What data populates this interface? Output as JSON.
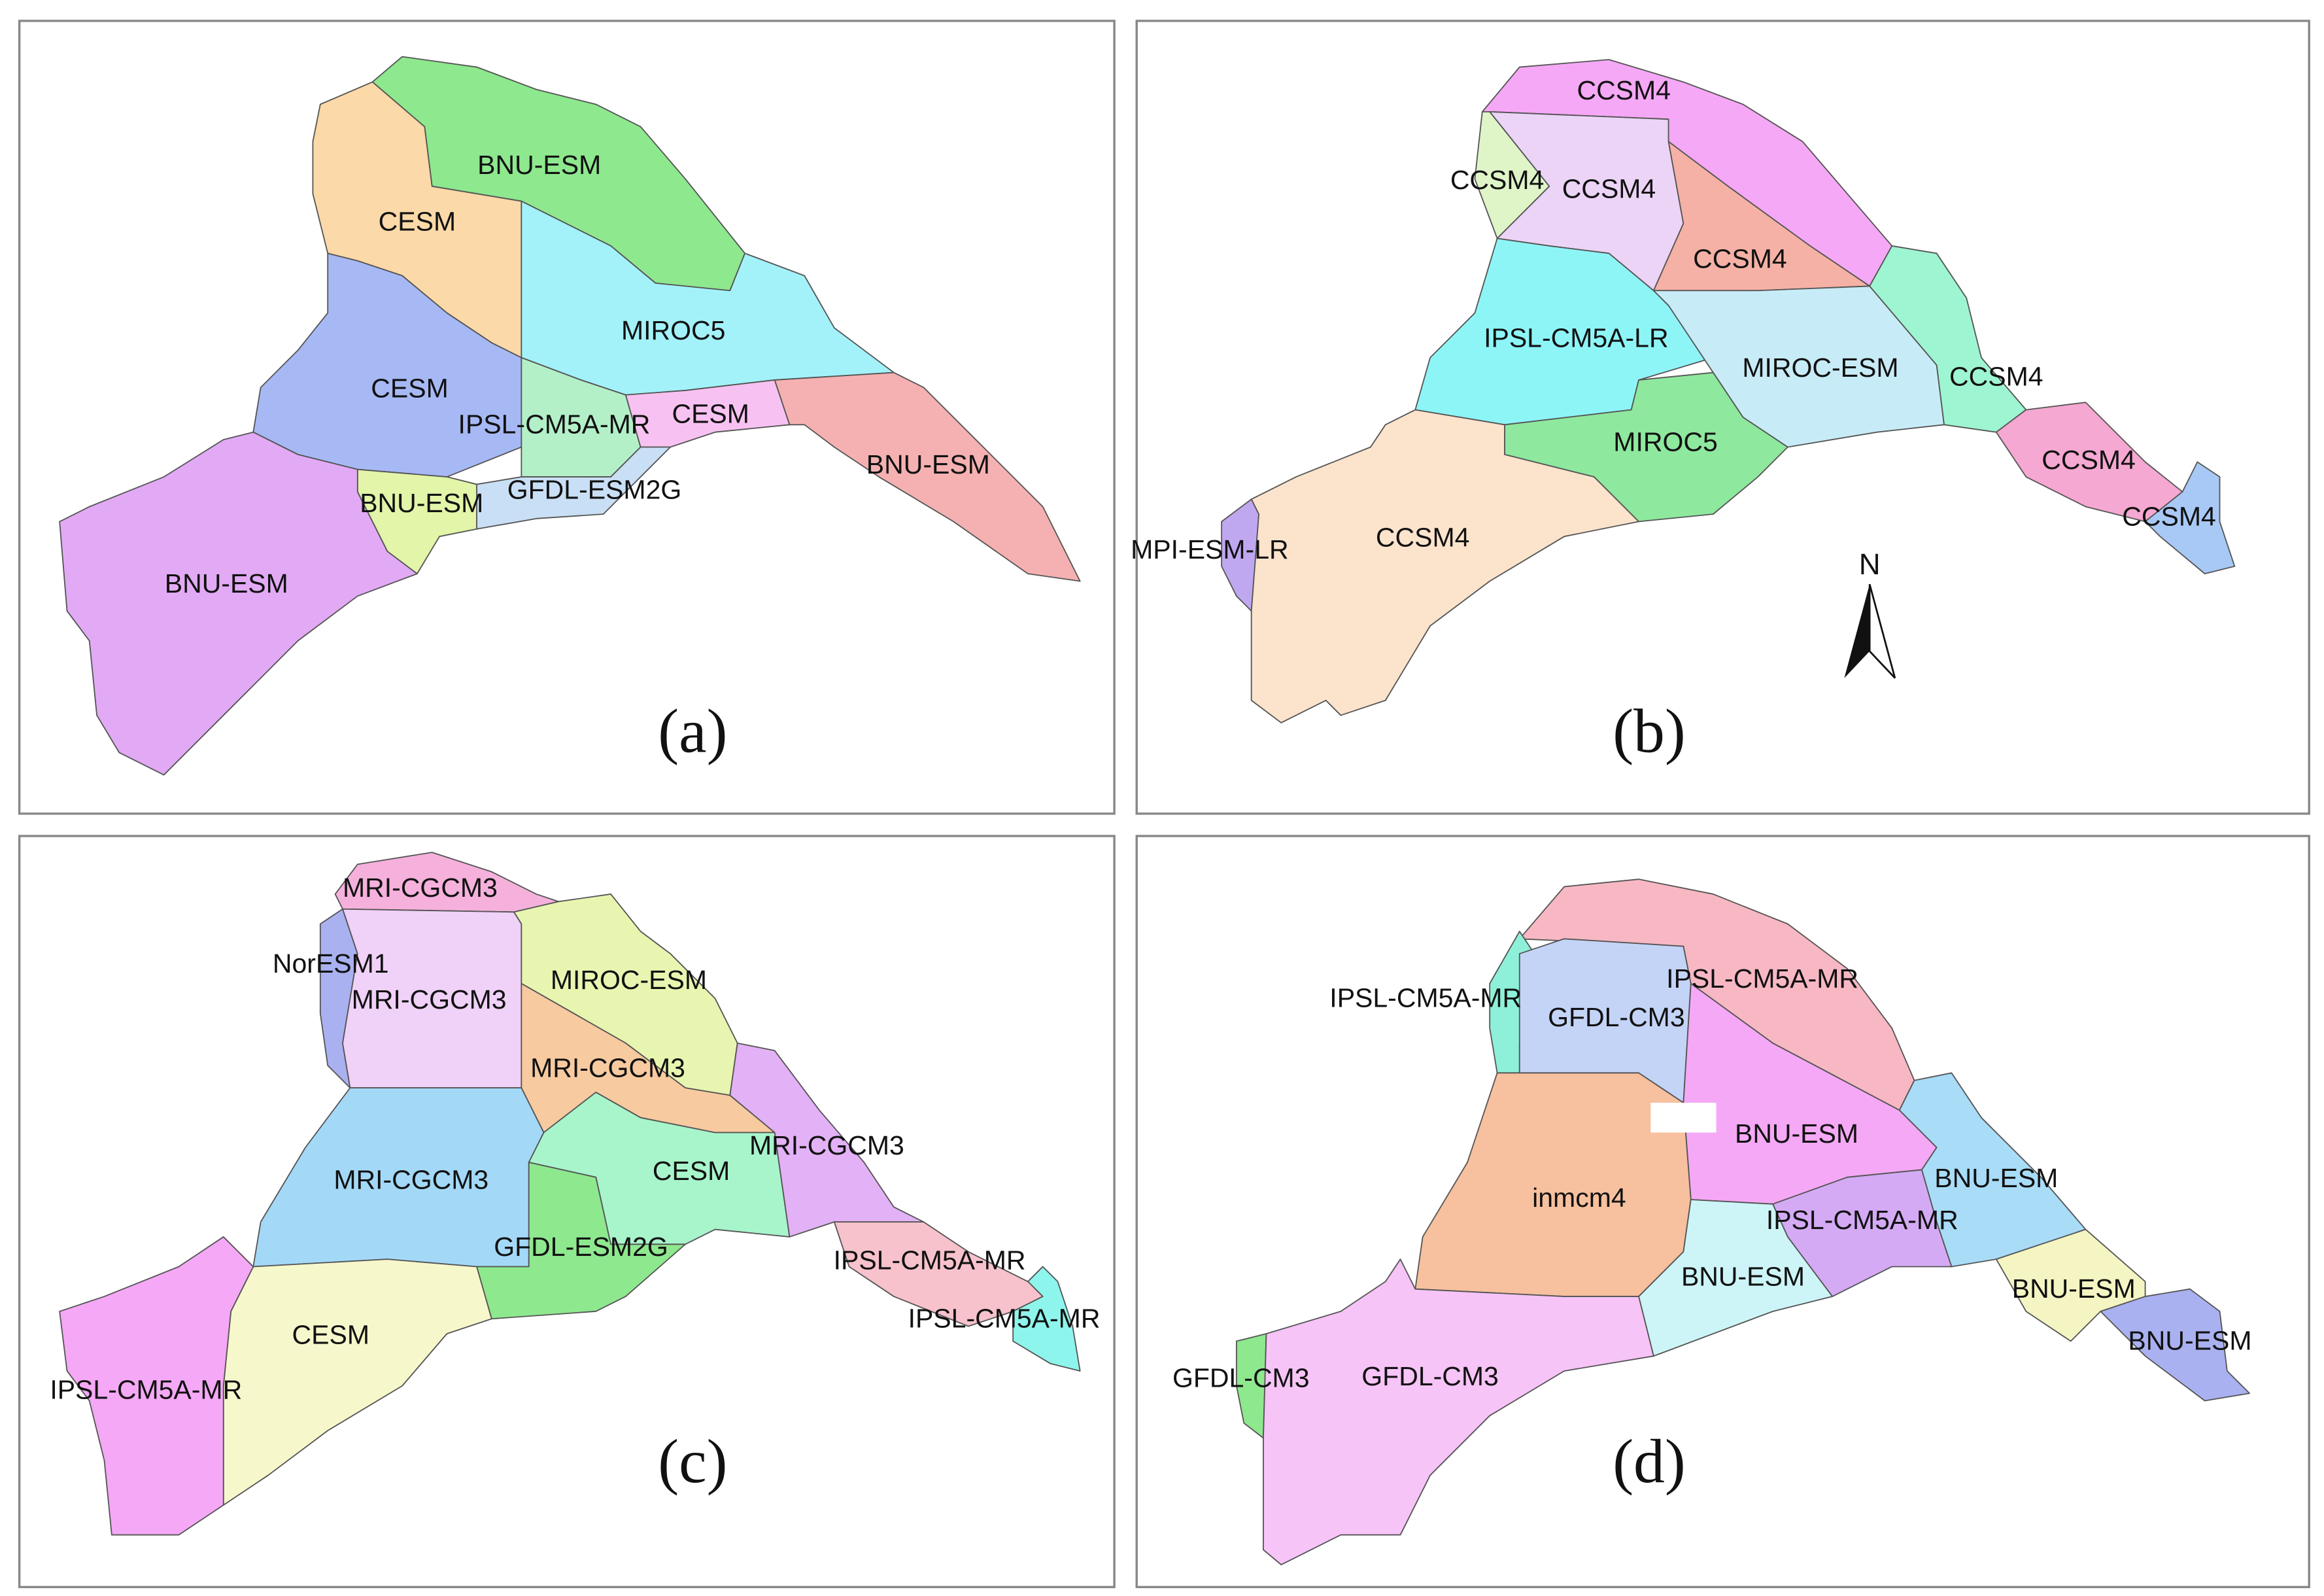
{
  "panels": [
    {
      "caption": "(a)",
      "regions": [
        {
          "label": "BNU-ESM",
          "color": "#8ee88e"
        },
        {
          "label": "CESM",
          "color": "#fcd9a8"
        },
        {
          "label": "MIROC5",
          "color": "#a3f2fa"
        },
        {
          "label": "CESM",
          "color": "#a7b9f5"
        },
        {
          "label": "IPSL-CM5A-MR",
          "color": "#b3f0c8"
        },
        {
          "label": "CESM",
          "color": "#f7c2f2"
        },
        {
          "label": "BNU-ESM",
          "color": "#f5b1b1"
        },
        {
          "label": "GFDL-ESM2G",
          "color": "#c9dff5"
        },
        {
          "label": "BNU-ESM",
          "color": "#e2f5a8"
        },
        {
          "label": "BNU-ESM",
          "color": "#e2aaf5"
        }
      ]
    },
    {
      "caption": "(b)",
      "regions": [
        {
          "label": "CCSM4",
          "color": "#f5a8f5"
        },
        {
          "label": "CCSM4",
          "color": "#dff5c8"
        },
        {
          "label": "CCSM4",
          "color": "#ecd4f7"
        },
        {
          "label": "CCSM4",
          "color": "#f5b1a5"
        },
        {
          "label": "IPSL-CM5A-LR",
          "color": "#8ef5f7"
        },
        {
          "label": "MIROC-ESM",
          "color": "#c8ecf7"
        },
        {
          "label": "CCSM4",
          "color": "#9ef5d1"
        },
        {
          "label": "MIROC5",
          "color": "#8ee89e"
        },
        {
          "label": "CCSM4",
          "color": "#f5a8d1"
        },
        {
          "label": "CCSM4",
          "color": "#a8c9f5"
        },
        {
          "label": "MPI-ESM-LR",
          "color": "#c0a8f0"
        },
        {
          "label": "CCSM4",
          "color": "#fce3cc"
        }
      ]
    },
    {
      "caption": "(c)",
      "regions": [
        {
          "label": "MRI-CGCM3",
          "color": "#f5b1dc"
        },
        {
          "label": "NorESM1",
          "color": "#aab1f0"
        },
        {
          "label": "MRI-CGCM3",
          "color": "#f0d1f7"
        },
        {
          "label": "MIROC-ESM",
          "color": "#e8f5b1"
        },
        {
          "label": "MRI-CGCM3",
          "color": "#f7caa0"
        },
        {
          "label": "MRI-CGCM3",
          "color": "#a3d9f7"
        },
        {
          "label": "CESM",
          "color": "#a8f5cc"
        },
        {
          "label": "MRI-CGCM3",
          "color": "#e3b1f5"
        },
        {
          "label": "GFDL-ESM2G",
          "color": "#8ee88e"
        },
        {
          "label": "IPSL-CM5A-MR",
          "color": "#f7c2cc"
        },
        {
          "label": "IPSL-CM5A-MR",
          "color": "#8ef5ec"
        },
        {
          "label": "CESM",
          "color": "#f7f7cc"
        },
        {
          "label": "IPSL-CM5A-MR",
          "color": "#f5a8f5"
        }
      ]
    },
    {
      "caption": "(d)",
      "regions": [
        {
          "label": "IPSL-CM5A-MR",
          "color": "#f7b8c4"
        },
        {
          "label": "IPSL-CM5A-MR",
          "color": "#8ef0d9"
        },
        {
          "label": "GFDL-CM3",
          "color": "#c4d4f7"
        },
        {
          "label": "BNU-ESM",
          "color": "#f5a8f5"
        },
        {
          "label": "inmcm4",
          "color": "#f7c09e"
        },
        {
          "label": "BNU-ESM",
          "color": "#a8dcf7"
        },
        {
          "label": "IPSL-CM5A-MR",
          "color": "#d4aaf5"
        },
        {
          "label": "BNU-ESM",
          "color": "#cdf5f7"
        },
        {
          "label": "BNU-ESM",
          "color": "#f5f5c4"
        },
        {
          "label": "BNU-ESM",
          "color": "#aab1f0"
        },
        {
          "label": "GFDL-CM3",
          "color": "#8ee88e"
        },
        {
          "label": "GFDL-CM3",
          "color": "#f7c4f7"
        }
      ]
    }
  ],
  "north_arrow": "N"
}
